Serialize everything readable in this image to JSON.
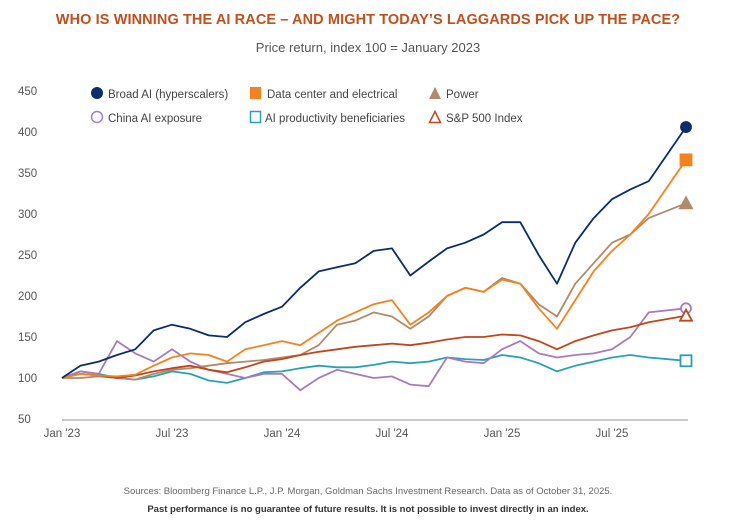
{
  "chart_data": {
    "type": "line",
    "title": "WHO IS WINNING THE AI RACE – AND MIGHT TODAY’S LAGGARDS PICK UP THE PACE?",
    "subtitle": "Price return, index 100 = January 2023",
    "xlabel": "",
    "ylabel": "",
    "ylim": [
      50,
      450
    ],
    "yticks": [
      "50",
      "100",
      "150",
      "200",
      "250",
      "300",
      "350",
      "400",
      "450"
    ],
    "xticks": [
      "Jan '23",
      "Jul '23",
      "Jan '24",
      "Jul '24",
      "Jan '25",
      "Jul '25"
    ],
    "x": [
      "2023-01",
      "2023-02",
      "2023-03",
      "2023-04",
      "2023-05",
      "2023-06",
      "2023-07",
      "2023-08",
      "2023-09",
      "2023-10",
      "2023-11",
      "2023-12",
      "2024-01",
      "2024-02",
      "2024-03",
      "2024-04",
      "2024-05",
      "2024-06",
      "2024-07",
      "2024-08",
      "2024-09",
      "2024-10",
      "2024-11",
      "2024-12",
      "2025-01",
      "2025-02",
      "2025-03",
      "2025-04",
      "2025-05",
      "2025-06",
      "2025-07",
      "2025-08",
      "2025-09",
      "2025-10"
    ],
    "grid": false,
    "legend_position": "top-left",
    "series": [
      {
        "name": "Broad AI (hyperscalers)",
        "color": "#0b2d6b",
        "marker": "circle-filled",
        "values": [
          100,
          115,
          120,
          128,
          135,
          158,
          165,
          160,
          152,
          150,
          168,
          178,
          187,
          210,
          230,
          235,
          240,
          255,
          258,
          225,
          242,
          258,
          265,
          275,
          290,
          290,
          250,
          215,
          265,
          295,
          318,
          330,
          340,
          406
        ]
      },
      {
        "name": "Data center and electrical",
        "color": "#f5821f",
        "marker": "square-filled",
        "values": [
          100,
          105,
          103,
          102,
          104,
          115,
          125,
          130,
          128,
          120,
          135,
          140,
          145,
          140,
          155,
          170,
          180,
          190,
          195,
          165,
          180,
          200,
          210,
          205,
          220,
          215,
          185,
          160,
          195,
          230,
          255,
          275,
          300,
          366
        ]
      },
      {
        "name": "Power",
        "color": "#b08a6a",
        "marker": "triangle-filled",
        "values": [
          100,
          100,
          102,
          100,
          98,
          105,
          110,
          112,
          115,
          118,
          120,
          122,
          125,
          128,
          140,
          165,
          170,
          180,
          175,
          160,
          175,
          200,
          210,
          205,
          222,
          215,
          190,
          175,
          215,
          240,
          265,
          275,
          295,
          313
        ]
      },
      {
        "name": "China AI exposure",
        "color": "#a77bc0",
        "marker": "circle-open",
        "values": [
          100,
          108,
          105,
          145,
          130,
          120,
          135,
          120,
          110,
          105,
          100,
          105,
          105,
          85,
          100,
          110,
          105,
          100,
          102,
          92,
          90,
          125,
          120,
          118,
          135,
          145,
          130,
          125,
          128,
          130,
          135,
          150,
          180,
          185
        ]
      },
      {
        "name": "AI productivity beneficiaries",
        "color": "#2aa0b8",
        "marker": "square-open",
        "values": [
          100,
          108,
          105,
          100,
          98,
          102,
          108,
          105,
          97,
          94,
          100,
          107,
          108,
          112,
          115,
          113,
          113,
          116,
          120,
          118,
          120,
          125,
          123,
          122,
          128,
          125,
          118,
          108,
          115,
          120,
          125,
          128,
          125,
          121
        ]
      },
      {
        "name": "S&P 500 Index",
        "color": "#c0461c",
        "marker": "triangle-open",
        "values": [
          100,
          105,
          103,
          100,
          103,
          108,
          112,
          115,
          110,
          107,
          113,
          120,
          123,
          128,
          132,
          135,
          138,
          140,
          142,
          140,
          143,
          147,
          150,
          150,
          153,
          152,
          145,
          135,
          145,
          152,
          158,
          162,
          168,
          176
        ]
      }
    ]
  },
  "footer": {
    "sources": "Sources: Bloomberg Finance L.P., J.P. Morgan, Goldman Sachs Investment Research. Data as of October 31, 2025.",
    "disclaimer": "Past performance is no guarantee of future results. It is not possible to invest directly in an index."
  }
}
